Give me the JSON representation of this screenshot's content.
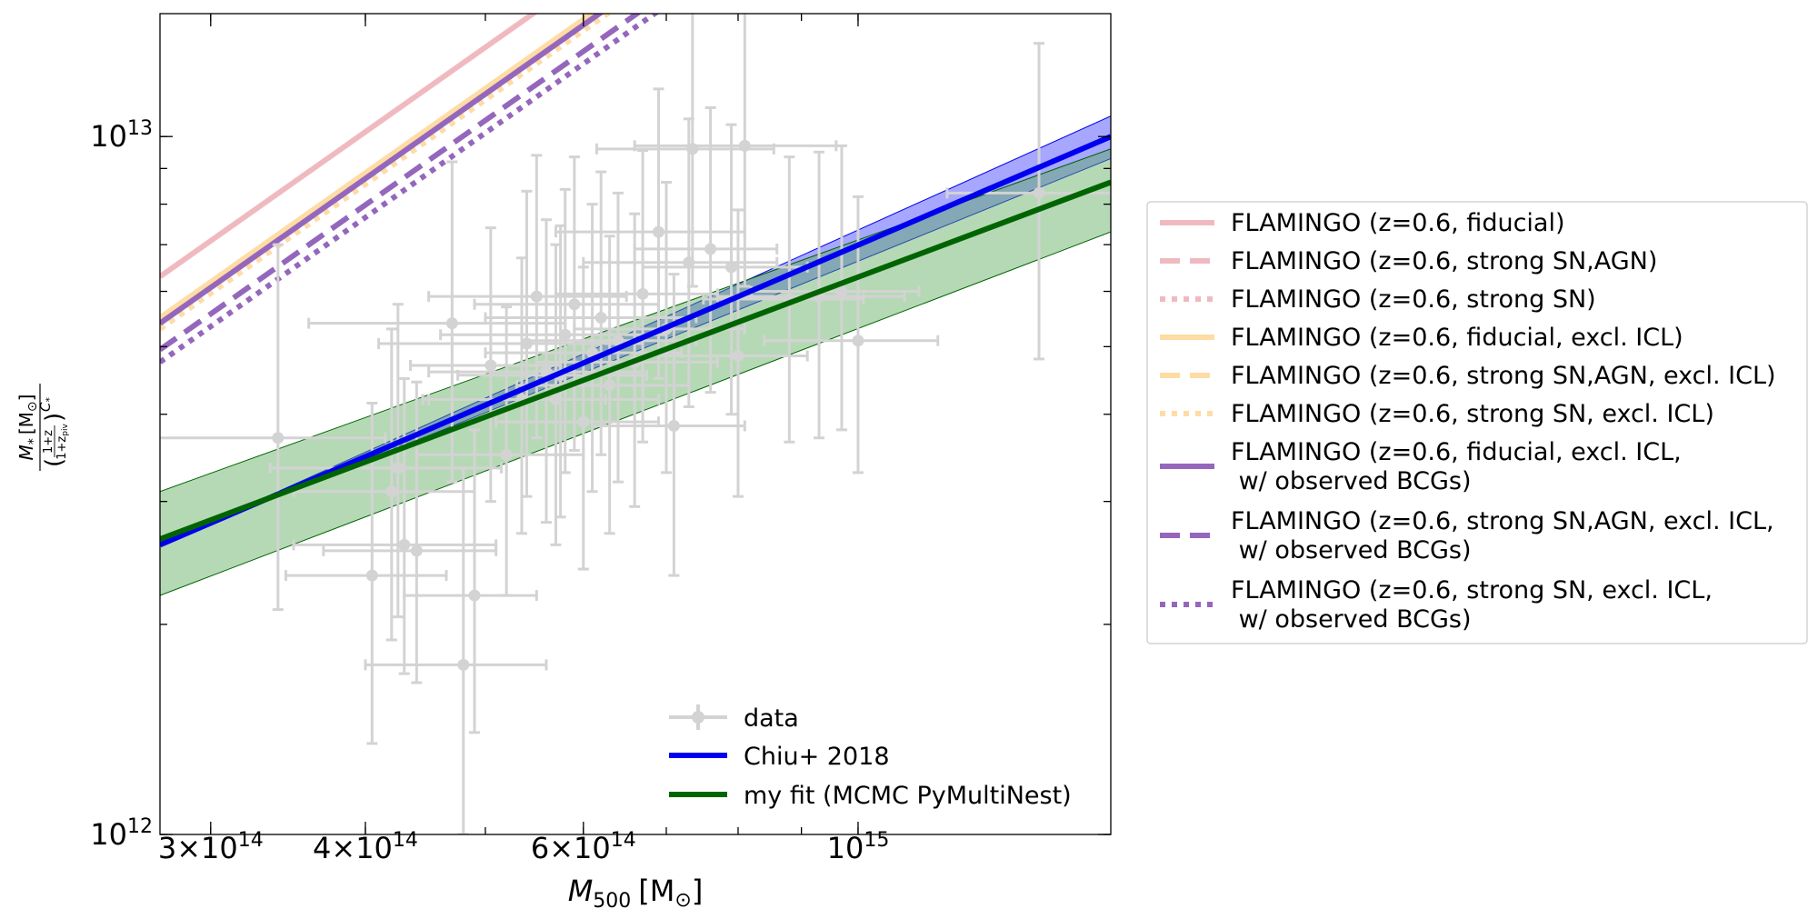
{
  "chart_data": {
    "type": "scatter",
    "xlabel_main": "M",
    "xlabel_sub": "500",
    "xlabel_unit": "[M",
    "xlabel_sun": "⊙",
    "xlabel_close": "]",
    "ylabel_num_m": "M",
    "ylabel_num_sub": "*",
    "ylabel_num_unit": "[M",
    "ylabel_num_sun": "⊙",
    "ylabel_num_close": "]",
    "ylabel_den_frac_num": "1+z",
    "ylabel_den_frac_den": "1+z",
    "ylabel_den_frac_den_sub": "piv",
    "ylabel_den_exp_c": "C",
    "ylabel_den_exp_sub": "*",
    "x_scale": "log",
    "y_scale": "log",
    "xlim": [
      273000000000000.0,
      1600000000000000.0
    ],
    "ylim": [
      1000000000000.0,
      15000000000000.0
    ],
    "x_ticks": [
      {
        "value": 300000000000000.0,
        "mant": "3",
        "exp": "14"
      },
      {
        "value": 400000000000000.0,
        "mant": "4",
        "exp": "14"
      },
      {
        "value": 600000000000000.0,
        "mant": "6",
        "exp": "14"
      },
      {
        "value": 1000000000000000.0,
        "mant": "",
        "exp": "15"
      }
    ],
    "y_ticks": [
      {
        "value": 1000000000000.0,
        "exp": "12"
      },
      {
        "value": 10000000000000.0,
        "exp": "13"
      }
    ],
    "grid": false,
    "data_points": [
      {
        "x": 340000000000000.0,
        "y": 3700000000000.0,
        "xerr": [
          75000000000000.0,
          75000000000000.0
        ],
        "yerr": [
          1600000000000.0,
          3300000000000.0
        ]
      },
      {
        "x": 420000000000000.0,
        "y": 3100000000000.0,
        "xerr": [
          70000000000000.0,
          70000000000000.0
        ],
        "yerr": [
          1200000000000.0,
          2200000000000.0
        ]
      },
      {
        "x": 425000000000000.0,
        "y": 3350000000000.0,
        "xerr": [
          90000000000000.0,
          90000000000000.0
        ],
        "yerr": [
          1300000000000.0,
          2400000000000.0
        ]
      },
      {
        "x": 430000000000000.0,
        "y": 2600000000000.0,
        "xerr": [
          80000000000000.0,
          80000000000000.0
        ],
        "yerr": [
          900000000000.0,
          1900000000000.0
        ]
      },
      {
        "x": 440000000000000.0,
        "y": 2550000000000.0,
        "xerr": [
          70000000000000.0,
          70000000000000.0
        ],
        "yerr": [
          900000000000.0,
          1900000000000.0
        ]
      },
      {
        "x": 405000000000000.0,
        "y": 2350000000000.0,
        "xerr": [
          60000000000000.0,
          60000000000000.0
        ],
        "yerr": [
          1000000000000.0,
          1800000000000.0
        ]
      },
      {
        "x": 470000000000000.0,
        "y": 5400000000000.0,
        "xerr": [
          110000000000000.0,
          110000000000000.0
        ],
        "yerr": [
          2200000000000.0,
          3800000000000.0
        ]
      },
      {
        "x": 480000000000000.0,
        "y": 1750000000000.0,
        "xerr": [
          80000000000000.0,
          80000000000000.0
        ],
        "yerr": [
          750000000000.0,
          1600000000000.0
        ]
      },
      {
        "x": 490000000000000.0,
        "y": 2200000000000.0,
        "xerr": [
          60000000000000.0,
          60000000000000.0
        ],
        "yerr": [
          800000000000.0,
          1600000000000.0
        ]
      },
      {
        "x": 505000000000000.0,
        "y": 4700000000000.0,
        "xerr": [
          70000000000000.0,
          70000000000000.0
        ],
        "yerr": [
          1700000000000.0,
          2700000000000.0
        ]
      },
      {
        "x": 520000000000000.0,
        "y": 3500000000000.0,
        "xerr": [
          80000000000000.0,
          80000000000000.0
        ],
        "yerr": [
          1300000000000.0,
          2200000000000.0
        ]
      },
      {
        "x": 535000000000000.0,
        "y": 4200000000000.0,
        "xerr": [
          90000000000000.0,
          90000000000000.0
        ],
        "yerr": [
          1500000000000.0,
          2500000000000.0
        ]
      },
      {
        "x": 540000000000000.0,
        "y": 5050000000000.0,
        "xerr": [
          130000000000000.0,
          130000000000000.0
        ],
        "yerr": [
          2000000000000.0,
          3300000000000.0
        ]
      },
      {
        "x": 550000000000000.0,
        "y": 5900000000000.0,
        "xerr": [
          100000000000000.0,
          100000000000000.0
        ],
        "yerr": [
          2200000000000.0,
          3500000000000.0
        ]
      },
      {
        "x": 560000000000000.0,
        "y": 4600000000000.0,
        "xerr": [
          110000000000000.0,
          110000000000000.0
        ],
        "yerr": [
          1800000000000.0,
          3000000000000.0
        ]
      },
      {
        "x": 570000000000000.0,
        "y": 4200000000000.0,
        "xerr": [
          120000000000000.0,
          120000000000000.0
        ],
        "yerr": [
          1600000000000.0,
          2800000000000.0
        ]
      },
      {
        "x": 575000000000000.0,
        "y": 4550000000000.0,
        "xerr": [
          100000000000000.0,
          100000000000000.0
        ],
        "yerr": [
          1700000000000.0,
          2900000000000.0
        ]
      },
      {
        "x": 580000000000000.0,
        "y": 5200000000000.0,
        "xerr": [
          120000000000000.0,
          120000000000000.0
        ],
        "yerr": [
          1900000000000.0,
          3200000000000.0
        ]
      },
      {
        "x": 590000000000000.0,
        "y": 5750000000000.0,
        "xerr": [
          100000000000000.0,
          100000000000000.0
        ],
        "yerr": [
          2200000000000.0,
          3600000000000.0
        ]
      },
      {
        "x": 600000000000000.0,
        "y": 3900000000000.0,
        "xerr": [
          90000000000000.0,
          90000000000000.0
        ],
        "yerr": [
          1500000000000.0,
          2600000000000.0
        ]
      },
      {
        "x": 610000000000000.0,
        "y": 4900000000000.0,
        "xerr": [
          110000000000000.0,
          110000000000000.0
        ],
        "yerr": [
          1800000000000.0,
          3100000000000.0
        ]
      },
      {
        "x": 620000000000000.0,
        "y": 5500000000000.0,
        "xerr": [
          120000000000000.0,
          120000000000000.0
        ],
        "yerr": [
          2000000000000.0,
          3400000000000.0
        ]
      },
      {
        "x": 630000000000000.0,
        "y": 4400000000000.0,
        "xerr": [
          100000000000000.0,
          100000000000000.0
        ],
        "yerr": [
          1700000000000.0,
          2800000000000.0
        ]
      },
      {
        "x": 640000000000000.0,
        "y": 5100000000000.0,
        "xerr": [
          100000000000000.0,
          100000000000000.0
        ],
        "yerr": [
          1900000000000.0,
          3200000000000.0
        ]
      },
      {
        "x": 660000000000000.0,
        "y": 4750000000000.0,
        "xerr": [
          110000000000000.0,
          110000000000000.0
        ],
        "yerr": [
          1800000000000.0,
          3000000000000.0
        ]
      },
      {
        "x": 670000000000000.0,
        "y": 5950000000000.0,
        "xerr": [
          100000000000000.0,
          100000000000000.0
        ],
        "yerr": [
          2300000000000.0,
          3600000000000.0
        ]
      },
      {
        "x": 690000000000000.0,
        "y": 7300000000000.0,
        "xerr": [
          120000000000000.0,
          120000000000000.0
        ],
        "yerr": [
          2800000000000.0,
          4400000000000.0
        ]
      },
      {
        "x": 700000000000000.0,
        "y": 5300000000000.0,
        "xerr": [
          110000000000000.0,
          110000000000000.0
        ],
        "yerr": [
          2000000000000.0,
          3300000000000.0
        ]
      },
      {
        "x": 710000000000000.0,
        "y": 3850000000000.0,
        "xerr": [
          100000000000000.0,
          100000000000000.0
        ],
        "yerr": [
          1500000000000.0,
          2500000000000.0
        ]
      },
      {
        "x": 730000000000000.0,
        "y": 6600000000000.0,
        "xerr": [
          130000000000000.0,
          130000000000000.0
        ],
        "yerr": [
          2500000000000.0,
          4000000000000.0
        ]
      },
      {
        "x": 735000000000000.0,
        "y": 9600000000000.0,
        "xerr": [
          120000000000000.0,
          120000000000000.0
        ],
        "yerr": [
          3500000000000.0,
          5500000000000.0
        ]
      },
      {
        "x": 760000000000000.0,
        "y": 6900000000000.0,
        "xerr": [
          100000000000000.0,
          100000000000000.0
        ],
        "yerr": [
          2600000000000.0,
          4100000000000.0
        ]
      },
      {
        "x": 790000000000000.0,
        "y": 6500000000000.0,
        "xerr": [
          120000000000000.0,
          120000000000000.0
        ],
        "yerr": [
          2500000000000.0,
          3900000000000.0
        ]
      },
      {
        "x": 800000000000000.0,
        "y": 4850000000000.0,
        "xerr": [
          110000000000000.0,
          110000000000000.0
        ],
        "yerr": [
          1800000000000.0,
          3000000000000.0
        ]
      },
      {
        "x": 810000000000000.0,
        "y": 9700000000000.0,
        "xerr": [
          150000000000000.0,
          150000000000000.0
        ],
        "yerr": [
          3600000000000.0,
          5500000000000.0
        ]
      },
      {
        "x": 880000000000000.0,
        "y": 5850000000000.0,
        "xerr": [
          130000000000000.0,
          130000000000000.0
        ],
        "yerr": [
          2200000000000.0,
          3500000000000.0
        ]
      },
      {
        "x": 930000000000000.0,
        "y": 5900000000000.0,
        "xerr": [
          160000000000000.0,
          160000000000000.0
        ],
        "yerr": [
          2200000000000.0,
          3600000000000.0
        ]
      },
      {
        "x": 970000000000000.0,
        "y": 6000000000000.0,
        "xerr": [
          150000000000000.0,
          150000000000000.0
        ],
        "yerr": [
          2200000000000.0,
          3700000000000.0
        ]
      },
      {
        "x": 1000000000000000.0,
        "y": 5100000000000.0,
        "xerr": [
          160000000000000.0,
          160000000000000.0
        ],
        "yerr": [
          1800000000000.0,
          3100000000000.0
        ]
      },
      {
        "x": 1400000000000000.0,
        "y": 8300000000000.0,
        "xerr": [
          220000000000000.0,
          220000000000000.0
        ],
        "yerr": [
          3500000000000.0,
          5300000000000.0
        ]
      }
    ],
    "fits": [
      {
        "name": "Chiu+ 2018",
        "color": "#0000ee",
        "y_at_x0": 2600000000000.0,
        "y_at_x1": 10000000000000.0,
        "band_lo": [
          2600000000000.0,
          9300000000000.0
        ],
        "band_hi": [
          2600000000000.0,
          10700000000000.0
        ],
        "band_color": "#3b3bff"
      },
      {
        "name": "my fit (MCMC PyMultiNest)",
        "color": "#006400",
        "y_at_x0": 2650000000000.0,
        "y_at_x1": 8600000000000.0,
        "band_lo": [
          2200000000000.0,
          7300000000000.0
        ],
        "band_hi": [
          3100000000000.0,
          9600000000000.0
        ],
        "band_color": "#5aaa5a"
      }
    ],
    "flamingo": [
      {
        "label": "FLAMINGO (z=0.6, fiducial)",
        "color": "#f0b9c0",
        "dash": "solid",
        "y_at_x0": 6300000000000.0
      },
      {
        "label": "FLAMINGO (z=0.6, strong SN,AGN)",
        "color": "#f0b9c0",
        "dash": "dashed",
        "y_at_x0": 5400000000000.0
      },
      {
        "label": "FLAMINGO (z=0.6, strong SN)",
        "color": "#f0b9c0",
        "dash": "dotted",
        "y_at_x0": 5300000000000.0
      },
      {
        "label": "FLAMINGO (z=0.6, fiducial, excl. ICL)",
        "color": "#ffdca4",
        "dash": "solid",
        "y_at_x0": 5500000000000.0
      },
      {
        "label": "FLAMINGO (z=0.6, strong SN,AGN, excl. ICL)",
        "color": "#ffdca4",
        "dash": "dashed",
        "y_at_x0": 5400000000000.0
      },
      {
        "label": "FLAMINGO (z=0.6, strong SN, excl. ICL)",
        "color": "#ffdca4",
        "dash": "dotted",
        "y_at_x0": 5300000000000.0
      },
      {
        "label": "FLAMINGO (z=0.6, fiducial, excl. ICL,\n w/ observed BCGs)",
        "color": "#9467bd",
        "dash": "solid",
        "y_at_x0": 5400000000000.0
      },
      {
        "label": "FLAMINGO (z=0.6, strong SN,AGN, excl. ICL,\n w/ observed BCGs)",
        "color": "#9467bd",
        "dash": "dashed",
        "y_at_x0": 4950000000000.0
      },
      {
        "label": "FLAMINGO (z=0.6, strong SN, excl. ICL,\n w/ observed BCGs)",
        "color": "#9467bd",
        "dash": "dotted",
        "y_at_x0": 4750000000000.0
      }
    ],
    "flamingo_slope": 1.25,
    "data_color": "#d3d3d3",
    "inner_legend": [
      {
        "label": "data",
        "kind": "data"
      },
      {
        "label": "Chiu+ 2018",
        "kind": "fit0"
      },
      {
        "label": "my fit (MCMC PyMultiNest)",
        "kind": "fit1"
      }
    ],
    "inner_legend_placement": "lower right",
    "outer_legend_placement": "right of axes"
  }
}
